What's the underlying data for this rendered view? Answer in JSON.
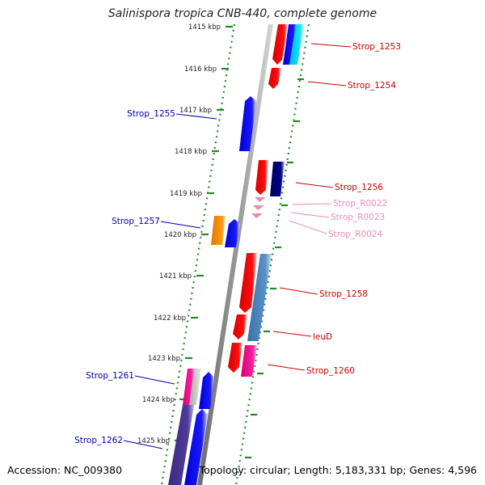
{
  "title": "Salinispora tropica CNB-440, complete genome",
  "footer": {
    "accession": "Accession: NC_009380",
    "topology": "Topology: circular; Length: 5,183,331 bp; Genes: 4,596"
  },
  "scale": {
    "ticks": [
      "1415 kbp",
      "1416 kbp",
      "1417 kbp",
      "1418 kbp",
      "1419 kbp",
      "1420 kbp",
      "1421 kbp",
      "1422 kbp",
      "1423 kbp",
      "1424 kbp",
      "1425 kbp"
    ]
  },
  "colors": {
    "axis": "#888888",
    "track_dots": "#228b22",
    "label_forward": "#cc0000",
    "label_reverse": "#0000aa",
    "label_rna": "#ee88bb"
  },
  "features": [
    {
      "label": "Strop_1253",
      "color": "#cc0000"
    },
    {
      "label": "Strop_1254",
      "color": "#cc0000"
    },
    {
      "label": "Strop_1255",
      "color": "#0000aa"
    },
    {
      "label": "Strop_1256",
      "color": "#cc0000"
    },
    {
      "label": "Strop_R0022",
      "color": "#ee88bb"
    },
    {
      "label": "Strop_R0023",
      "color": "#ee88bb"
    },
    {
      "label": "Strop_R0024",
      "color": "#ee88bb"
    },
    {
      "label": "Strop_1257",
      "color": "#0000aa"
    },
    {
      "label": "Strop_1258",
      "color": "#cc0000"
    },
    {
      "label": "leuD",
      "color": "#cc0000"
    },
    {
      "label": "Strop_1260",
      "color": "#cc0000"
    },
    {
      "label": "Strop_1261",
      "color": "#0000aa"
    },
    {
      "label": "Strop_1262",
      "color": "#0000aa"
    }
  ]
}
